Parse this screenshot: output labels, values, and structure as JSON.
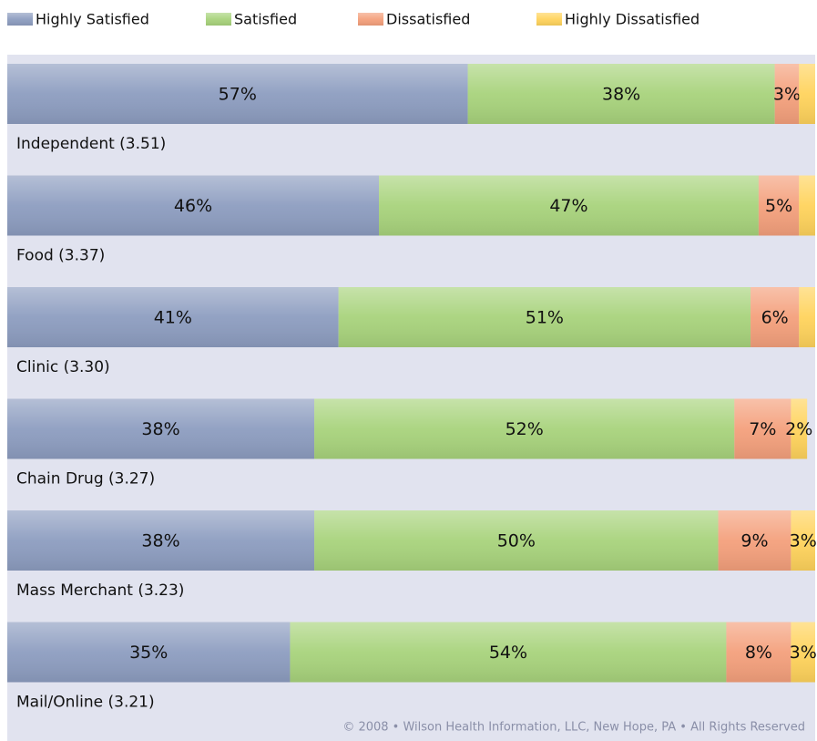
{
  "chart_data": {
    "type": "stacked_barh",
    "categories": [
      "Independent (3.51)",
      "Food (3.37)",
      "Clinic (3.30)",
      "Chain Drug (3.27)",
      "Mass Merchant (3.23)",
      "Mail/Online (3.21)"
    ],
    "series": [
      {
        "name": "Highly Satisfied",
        "color": "#8d9dc0",
        "values": [
          57,
          46,
          41,
          38,
          38,
          35
        ],
        "value_labels": [
          "57%",
          "46%",
          "41%",
          "38%",
          "38%",
          "35%"
        ]
      },
      {
        "name": "Satisfied",
        "color": "#a8d37c",
        "values": [
          38,
          47,
          51,
          52,
          50,
          54
        ],
        "value_labels": [
          "38%",
          "47%",
          "51%",
          "52%",
          "50%",
          "54%"
        ]
      },
      {
        "name": "Dissatisfied",
        "color": "#f4a07c",
        "values": [
          3,
          5,
          6,
          7,
          9,
          8
        ],
        "value_labels": [
          "3%",
          "5%",
          "6%",
          "7%",
          "9%",
          "8%"
        ]
      },
      {
        "name": "Highly Dissatisfied",
        "color": "#ffd35c",
        "values": [
          2,
          2,
          2,
          2,
          3,
          3
        ],
        "value_labels": [
          null,
          null,
          null,
          "2%",
          "3%",
          "3%"
        ]
      }
    ],
    "xlim": [
      0,
      100
    ],
    "footer": "© 2008 • Wilson Health Information, LLC, New Hope, PA • All Rights Reserved"
  }
}
